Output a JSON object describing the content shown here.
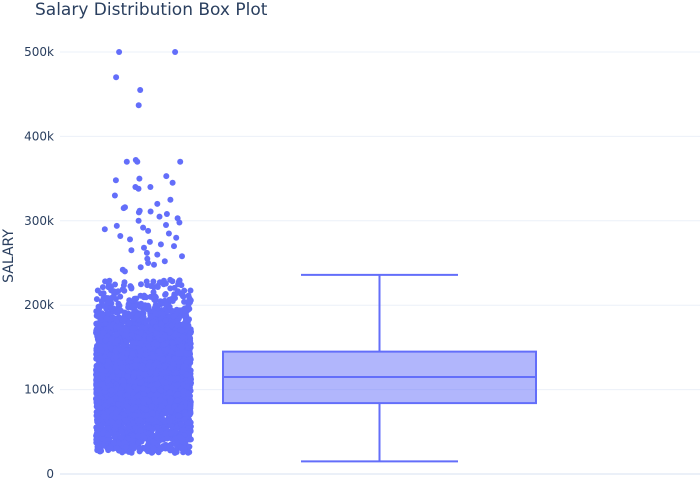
{
  "chart_data": {
    "type": "box",
    "title": "Salary Distribution Box Plot",
    "xlabel": "",
    "ylabel": "SALARY",
    "ylim": [
      0,
      520000
    ],
    "yticks": [
      {
        "value": 0,
        "label": "0"
      },
      {
        "value": 100000,
        "label": "100k"
      },
      {
        "value": 200000,
        "label": "200k"
      },
      {
        "value": 300000,
        "label": "300k"
      },
      {
        "value": 400000,
        "label": "400k"
      },
      {
        "value": 500000,
        "label": "500k"
      }
    ],
    "grid": true,
    "series": [
      {
        "color": "#636efa",
        "box": {
          "lower_fence": 15000,
          "q1": 84000,
          "median": 115000,
          "q3": 145000,
          "upper_fence": 236000
        },
        "outliers": [
          500000,
          500000,
          470000,
          455000,
          437000,
          372000,
          370000,
          370000,
          370000,
          353000,
          350000,
          348000,
          345000,
          340000,
          340000,
          338000,
          330000,
          325000,
          320000,
          316000,
          315000,
          312000,
          311000,
          310000,
          308000,
          305000,
          303000,
          300000,
          298000,
          295000,
          294000,
          292000,
          290000,
          288000,
          285000,
          282000,
          280000,
          278000,
          275000,
          272000,
          270000,
          268000,
          265000,
          262000,
          260000,
          258000,
          255000,
          252000,
          250000,
          248000,
          245000,
          242000,
          240000
        ]
      }
    ]
  }
}
